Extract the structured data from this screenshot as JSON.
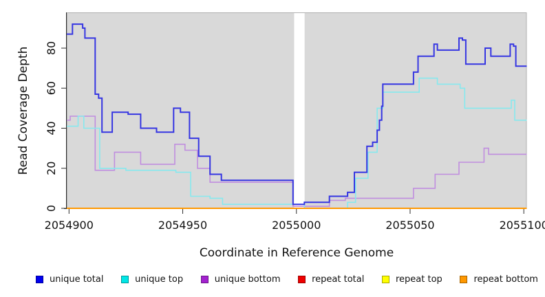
{
  "chart_data": {
    "type": "line",
    "subtype": "step-after-coverage-plot",
    "title": "",
    "xlabel": "Coordinate in Reference Genome",
    "ylabel": "Read Coverage Depth",
    "xlim": [
      2054899,
      2055101.3
    ],
    "ylim": [
      0,
      95
    ],
    "x_end": 2055101.3,
    "x_ticks": [
      "2054900",
      "2054950",
      "2055000",
      "2055050",
      "2055100"
    ],
    "x_tick_values": [
      2054900,
      2054950,
      2055000,
      2055050,
      2055100
    ],
    "y_ticks": [
      "0",
      "20",
      "40",
      "60",
      "80"
    ],
    "y_tick_values": [
      0,
      20,
      40,
      60,
      80
    ],
    "grid": "off",
    "legend_position": "bottom",
    "panel_bg": "#d9d9d9",
    "panel_border": "#b0b0b0",
    "coverage_gap_x": [
      2054999.0,
      2055003.6
    ],
    "series": [
      {
        "name": "unique total",
        "legend_color": "#0000ee",
        "line_color": "#3535e2",
        "width": 2,
        "points": [
          [
            2054899,
            87
          ],
          [
            2054901.5,
            92
          ],
          [
            2054906,
            90
          ],
          [
            2054907,
            85
          ],
          [
            2054911.5,
            57
          ],
          [
            2054913,
            55
          ],
          [
            2054914.5,
            38
          ],
          [
            2054919,
            48
          ],
          [
            2054926,
            47
          ],
          [
            2054931.5,
            40
          ],
          [
            2054938.5,
            38
          ],
          [
            2054946,
            50
          ],
          [
            2054949,
            48
          ],
          [
            2054953,
            35
          ],
          [
            2054957,
            26
          ],
          [
            2054962,
            17
          ],
          [
            2054967,
            14
          ],
          [
            2054998.5,
            2
          ],
          [
            2055003.5,
            3
          ],
          [
            2055014.5,
            6
          ],
          [
            2055022.5,
            8
          ],
          [
            2055025.5,
            18
          ],
          [
            2055031,
            31
          ],
          [
            2055033.5,
            33
          ],
          [
            2055035.5,
            39
          ],
          [
            2055036.5,
            44
          ],
          [
            2055037.5,
            51
          ],
          [
            2055038,
            62
          ],
          [
            2055051.5,
            68
          ],
          [
            2055053.5,
            76
          ],
          [
            2055060.5,
            82
          ],
          [
            2055062,
            79
          ],
          [
            2055071.5,
            85
          ],
          [
            2055073,
            84
          ],
          [
            2055074.5,
            72
          ],
          [
            2055083,
            80
          ],
          [
            2055085.5,
            76
          ],
          [
            2055094,
            82
          ],
          [
            2055095.5,
            81
          ],
          [
            2055096.5,
            71
          ]
        ]
      },
      {
        "name": "unique top",
        "legend_color": "#00e6e6",
        "line_color": "#86e9ee",
        "width": 1.6,
        "points": [
          [
            2054899,
            41
          ],
          [
            2054904,
            46
          ],
          [
            2054906.5,
            40
          ],
          [
            2054913.5,
            20
          ],
          [
            2054925,
            19
          ],
          [
            2054947,
            18
          ],
          [
            2054953.5,
            6
          ],
          [
            2054962,
            5
          ],
          [
            2054967.5,
            2
          ],
          [
            2055003.5,
            0
          ],
          [
            2055022.5,
            3
          ],
          [
            2055026,
            15
          ],
          [
            2055031.5,
            28
          ],
          [
            2055035.5,
            50
          ],
          [
            2055038,
            58
          ],
          [
            2055054,
            65
          ],
          [
            2055062,
            62
          ],
          [
            2055072,
            60
          ],
          [
            2055074,
            50
          ],
          [
            2055094.5,
            54
          ],
          [
            2055096,
            44
          ]
        ]
      },
      {
        "name": "unique bottom",
        "legend_color": "#a322cf",
        "line_color": "#c08ddf",
        "width": 1.6,
        "points": [
          [
            2054899,
            44
          ],
          [
            2054900.5,
            46
          ],
          [
            2054911.5,
            19
          ],
          [
            2054920,
            28
          ],
          [
            2054931.5,
            22
          ],
          [
            2054946.5,
            32
          ],
          [
            2054951,
            29
          ],
          [
            2054956.5,
            20
          ],
          [
            2054962,
            13
          ],
          [
            2054998.5,
            1
          ],
          [
            2055014.5,
            4
          ],
          [
            2055021.5,
            5
          ],
          [
            2055051.5,
            10
          ],
          [
            2055061,
            17
          ],
          [
            2055071.5,
            23
          ],
          [
            2055082.5,
            30
          ],
          [
            2055084.5,
            27
          ]
        ]
      },
      {
        "name": "repeat total",
        "legend_color": "#ee0000",
        "line_color": "#cc2222",
        "width": 1.6,
        "points": [
          [
            2054899,
            0
          ]
        ]
      },
      {
        "name": "repeat top",
        "legend_color": "#ffff00",
        "line_color": "#ffff33",
        "width": 1.6,
        "points": [
          [
            2054899,
            0
          ]
        ]
      },
      {
        "name": "repeat bottom",
        "legend_color": "#ff9800",
        "line_color": "#ff9800",
        "width": 2,
        "points": [
          [
            2054899,
            0
          ]
        ]
      }
    ]
  }
}
